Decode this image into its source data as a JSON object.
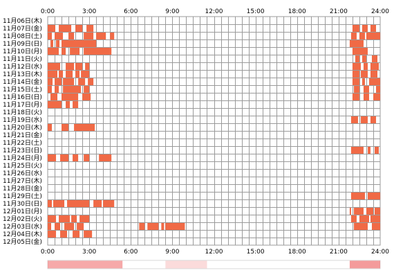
{
  "chart_data": {
    "type": "heatmap",
    "x_ticks": [
      "0:00",
      "3:00",
      "6:00",
      "9:00",
      "12:00",
      "15:00",
      "18:00",
      "21:00",
      "24:00"
    ],
    "rows": [
      {
        "label": "11月06日(木)",
        "segments": []
      },
      {
        "label": "11月07日(金)",
        "segments": [
          [
            0.0,
            0.55
          ],
          [
            0.8,
            1.7
          ],
          [
            2.0,
            2.5
          ],
          [
            2.8,
            3.3
          ],
          [
            22.0,
            22.5
          ],
          [
            22.7,
            23.1
          ],
          [
            23.3,
            23.7
          ]
        ]
      },
      {
        "label": "11月08日(土)",
        "segments": [
          [
            0.0,
            0.3
          ],
          [
            0.5,
            1.1
          ],
          [
            1.5,
            1.9
          ],
          [
            2.6,
            3.3
          ],
          [
            3.5,
            4.2
          ],
          [
            4.5,
            4.8
          ],
          [
            21.9,
            22.3
          ],
          [
            22.5,
            22.9
          ],
          [
            23.0,
            24.0
          ]
        ]
      },
      {
        "label": "11月09日(日)",
        "segments": [
          [
            0.2,
            0.4
          ],
          [
            0.6,
            0.85
          ],
          [
            1.0,
            3.5
          ],
          [
            21.8,
            22.8
          ]
        ]
      },
      {
        "label": "11月10日(月)",
        "segments": [
          [
            0.0,
            0.8
          ],
          [
            1.0,
            1.3
          ],
          [
            1.6,
            2.3
          ],
          [
            2.6,
            4.6
          ],
          [
            22.0,
            23.1
          ]
        ]
      },
      {
        "label": "11月11日(火)",
        "segments": [
          [
            22.2,
            22.5
          ],
          [
            22.7,
            23.0
          ],
          [
            23.4,
            23.8
          ]
        ]
      },
      {
        "label": "11月12日(水)",
        "segments": [
          [
            0.0,
            0.9
          ],
          [
            1.3,
            1.9
          ],
          [
            2.0,
            2.5
          ],
          [
            2.7,
            3.0
          ],
          [
            22.0,
            22.6
          ],
          [
            22.8,
            23.1
          ],
          [
            23.3,
            23.9
          ]
        ]
      },
      {
        "label": "11月13日(木)",
        "segments": [
          [
            0.0,
            0.7
          ],
          [
            0.8,
            1.1
          ],
          [
            1.3,
            1.8
          ],
          [
            2.0,
            2.3
          ],
          [
            2.4,
            3.0
          ],
          [
            22.0,
            22.5
          ],
          [
            22.6,
            23.1
          ],
          [
            23.3,
            23.8
          ]
        ]
      },
      {
        "label": "11月14日(金)",
        "segments": [
          [
            0.0,
            0.35
          ],
          [
            0.5,
            1.0
          ],
          [
            1.1,
            1.9
          ],
          [
            2.2,
            2.7
          ],
          [
            2.9,
            3.3
          ],
          [
            22.0,
            22.5
          ],
          [
            22.7,
            22.9
          ],
          [
            23.2,
            24.0
          ]
        ]
      },
      {
        "label": "11月15日(土)",
        "segments": [
          [
            0.0,
            0.3
          ],
          [
            0.5,
            0.8
          ],
          [
            1.1,
            2.4
          ],
          [
            2.6,
            3.0
          ],
          [
            22.1,
            22.5
          ],
          [
            22.8,
            23.2
          ],
          [
            23.7,
            24.0
          ]
        ]
      },
      {
        "label": "11月16日(日)",
        "segments": [
          [
            0.2,
            0.7
          ],
          [
            1.0,
            2.2
          ],
          [
            2.5,
            3.1
          ],
          [
            22.0,
            22.5
          ],
          [
            22.8,
            23.2
          ],
          [
            23.5,
            24.0
          ]
        ]
      },
      {
        "label": "11月17日(月)",
        "segments": [
          [
            0.0,
            1.0
          ],
          [
            1.3,
            1.6
          ],
          [
            1.8,
            2.2
          ]
        ]
      },
      {
        "label": "11月18日(火)",
        "segments": []
      },
      {
        "label": "11月19日(水)",
        "segments": [
          [
            21.9,
            22.4
          ],
          [
            22.6,
            23.1
          ],
          [
            23.3,
            23.7
          ]
        ]
      },
      {
        "label": "11月20日(木)",
        "segments": [
          [
            0.0,
            0.3
          ],
          [
            1.0,
            1.5
          ],
          [
            1.9,
            3.4
          ]
        ]
      },
      {
        "label": "11月21日(金)",
        "segments": []
      },
      {
        "label": "11月22日(土)",
        "segments": []
      },
      {
        "label": "11月23日(日)",
        "segments": [
          [
            21.9,
            22.8
          ],
          [
            23.1,
            23.3
          ],
          [
            23.6,
            23.9
          ]
        ]
      },
      {
        "label": "11月24日(月)",
        "segments": [
          [
            0.0,
            0.6
          ],
          [
            0.9,
            1.5
          ],
          [
            1.8,
            2.2
          ],
          [
            2.6,
            3.0
          ],
          [
            3.7,
            4.6
          ]
        ]
      },
      {
        "label": "11月25日(火)",
        "segments": []
      },
      {
        "label": "11月26日(水)",
        "segments": []
      },
      {
        "label": "11月27日(木)",
        "segments": []
      },
      {
        "label": "11月28日(金)",
        "segments": []
      },
      {
        "label": "11月29日(土)",
        "segments": [
          [
            21.9,
            22.9
          ],
          [
            23.1,
            24.0
          ]
        ]
      },
      {
        "label": "11月30日(日)",
        "segments": [
          [
            0.0,
            0.3
          ],
          [
            0.4,
            1.2
          ],
          [
            1.4,
            3.0
          ],
          [
            3.3,
            3.9
          ],
          [
            4.0,
            4.8
          ]
        ]
      },
      {
        "label": "12月01日(月)",
        "segments": [
          [
            21.8,
            21.9
          ],
          [
            22.1,
            22.8
          ],
          [
            23.0,
            23.5
          ],
          [
            23.6,
            24.0
          ]
        ]
      },
      {
        "label": "12月02日(火)",
        "segments": [
          [
            0.0,
            0.6
          ],
          [
            0.8,
            1.6
          ],
          [
            1.7,
            2.1
          ],
          [
            2.3,
            3.0
          ],
          [
            21.9,
            22.3
          ],
          [
            22.5,
            23.2
          ],
          [
            23.3,
            24.0
          ]
        ]
      },
      {
        "label": "12月03日(水)",
        "segments": [
          [
            0.0,
            0.25
          ],
          [
            0.5,
            0.9
          ],
          [
            1.2,
            1.9
          ],
          [
            2.1,
            2.6
          ],
          [
            6.6,
            7.0
          ],
          [
            7.2,
            8.0
          ],
          [
            8.2,
            8.4
          ],
          [
            8.5,
            9.9
          ],
          [
            22.1,
            23.1
          ],
          [
            23.4,
            24.0
          ]
        ]
      },
      {
        "label": "12月04日(木)",
        "segments": [
          [
            0.0,
            0.6
          ],
          [
            0.9,
            1.4
          ],
          [
            1.8,
            2.3
          ],
          [
            2.6,
            3.2
          ]
        ]
      },
      {
        "label": "12月05日(金)",
        "segments": []
      }
    ],
    "summary_bar_segments": [
      [
        0.0,
        5.4,
        0.6
      ],
      [
        8.5,
        11.5,
        0.25
      ],
      [
        21.8,
        24.0,
        0.7
      ]
    ],
    "colors": {
      "bar": "#f06a46",
      "grid": "#9a9a9a",
      "summary": "#f07070"
    }
  }
}
